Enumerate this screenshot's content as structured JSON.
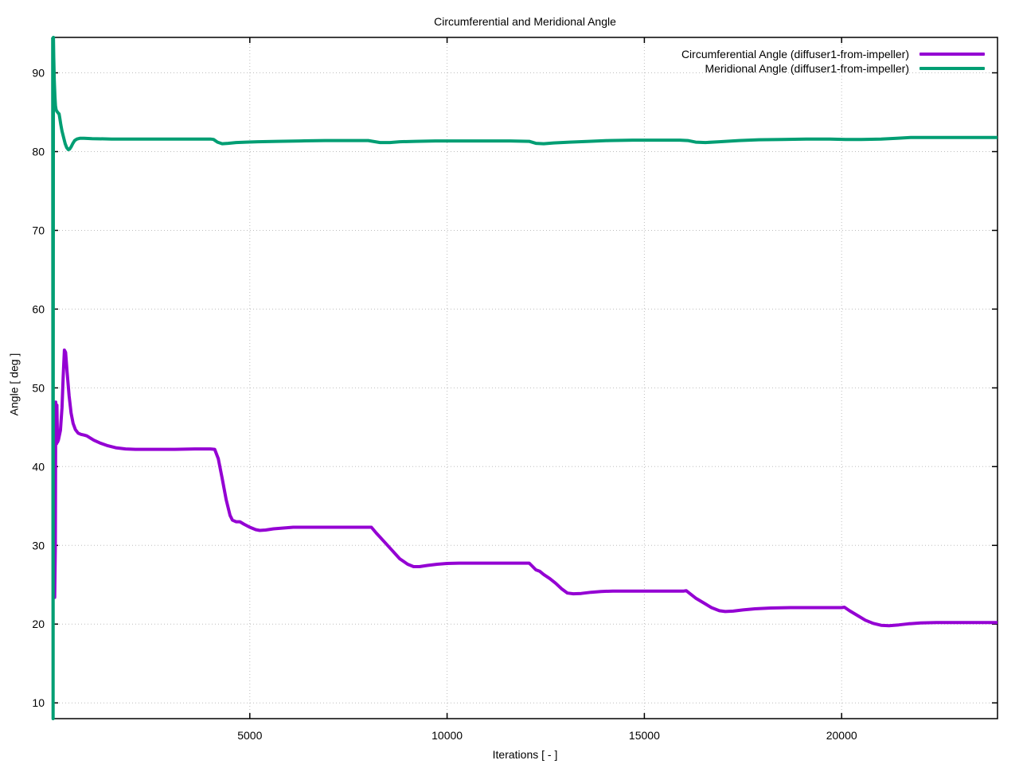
{
  "page": {
    "background": "#ffffff"
  },
  "chart_data": {
    "type": "line",
    "title": "Circumferential and Meridional Angle",
    "xlabel": "Iterations [ - ]",
    "ylabel": "Angle [ deg ]",
    "xlim": [
      0,
      23950
    ],
    "ylim": [
      8,
      94.5
    ],
    "xticks": [
      5000,
      10000,
      15000,
      20000
    ],
    "yticks": [
      10,
      20,
      30,
      40,
      50,
      60,
      70,
      80,
      90
    ],
    "grid": "dotted",
    "legend_position": "top-right",
    "axis_color": "#000000",
    "grid_color": "#bdbdbd",
    "series": [
      {
        "name": "Circumferential Angle (diffuser1-from-impeller)",
        "color": "#9400d3",
        "points": [
          [
            40,
            25
          ],
          [
            55,
            23.4
          ],
          [
            70,
            30
          ],
          [
            80,
            48.2
          ],
          [
            90,
            46
          ],
          [
            100,
            42.9
          ],
          [
            110,
            47.8
          ],
          [
            125,
            43.1
          ],
          [
            150,
            43.4
          ],
          [
            200,
            44.6
          ],
          [
            240,
            47.5
          ],
          [
            270,
            51.5
          ],
          [
            300,
            54.8
          ],
          [
            330,
            54.5
          ],
          [
            370,
            52
          ],
          [
            420,
            49
          ],
          [
            470,
            46.8
          ],
          [
            520,
            45.5
          ],
          [
            580,
            44.7
          ],
          [
            650,
            44.25
          ],
          [
            720,
            44.1
          ],
          [
            800,
            44.0
          ],
          [
            870,
            43.9
          ],
          [
            950,
            43.65
          ],
          [
            1050,
            43.35
          ],
          [
            1200,
            43.0
          ],
          [
            1400,
            42.65
          ],
          [
            1600,
            42.4
          ],
          [
            1850,
            42.25
          ],
          [
            2100,
            42.2
          ],
          [
            2600,
            42.2
          ],
          [
            3100,
            42.2
          ],
          [
            3600,
            42.25
          ],
          [
            4000,
            42.25
          ],
          [
            4110,
            42.2
          ],
          [
            4200,
            41
          ],
          [
            4300,
            38.5
          ],
          [
            4400,
            35.8
          ],
          [
            4500,
            33.8
          ],
          [
            4560,
            33.2
          ],
          [
            4650,
            33.0
          ],
          [
            4750,
            33.0
          ],
          [
            4850,
            32.7
          ],
          [
            5000,
            32.3
          ],
          [
            5150,
            32.0
          ],
          [
            5250,
            31.9
          ],
          [
            5400,
            31.95
          ],
          [
            5600,
            32.1
          ],
          [
            5850,
            32.2
          ],
          [
            6100,
            32.3
          ],
          [
            6500,
            32.3
          ],
          [
            7000,
            32.3
          ],
          [
            7500,
            32.3
          ],
          [
            8080,
            32.3
          ],
          [
            8200,
            31.6
          ],
          [
            8400,
            30.5
          ],
          [
            8600,
            29.4
          ],
          [
            8800,
            28.3
          ],
          [
            9000,
            27.6
          ],
          [
            9150,
            27.3
          ],
          [
            9300,
            27.3
          ],
          [
            9500,
            27.45
          ],
          [
            9750,
            27.6
          ],
          [
            10000,
            27.7
          ],
          [
            10300,
            27.75
          ],
          [
            10800,
            27.75
          ],
          [
            11300,
            27.75
          ],
          [
            11800,
            27.75
          ],
          [
            12080,
            27.75
          ],
          [
            12150,
            27.4
          ],
          [
            12250,
            26.9
          ],
          [
            12350,
            26.7
          ],
          [
            12450,
            26.3
          ],
          [
            12600,
            25.8
          ],
          [
            12750,
            25.2
          ],
          [
            12900,
            24.5
          ],
          [
            13050,
            23.95
          ],
          [
            13200,
            23.85
          ],
          [
            13400,
            23.9
          ],
          [
            13650,
            24.05
          ],
          [
            13900,
            24.15
          ],
          [
            14200,
            24.2
          ],
          [
            14700,
            24.2
          ],
          [
            15200,
            24.2
          ],
          [
            15700,
            24.2
          ],
          [
            16000,
            24.2
          ],
          [
            16060,
            24.25
          ],
          [
            16150,
            23.9
          ],
          [
            16300,
            23.3
          ],
          [
            16500,
            22.7
          ],
          [
            16700,
            22.1
          ],
          [
            16900,
            21.7
          ],
          [
            17050,
            21.6
          ],
          [
            17250,
            21.65
          ],
          [
            17500,
            21.8
          ],
          [
            17800,
            21.95
          ],
          [
            18200,
            22.05
          ],
          [
            18700,
            22.1
          ],
          [
            19200,
            22.1
          ],
          [
            19700,
            22.1
          ],
          [
            20000,
            22.1
          ],
          [
            20070,
            22.15
          ],
          [
            20200,
            21.7
          ],
          [
            20400,
            21.1
          ],
          [
            20600,
            20.5
          ],
          [
            20800,
            20.1
          ],
          [
            21000,
            19.85
          ],
          [
            21200,
            19.8
          ],
          [
            21450,
            19.9
          ],
          [
            21700,
            20.05
          ],
          [
            22000,
            20.15
          ],
          [
            22400,
            20.2
          ],
          [
            22900,
            20.2
          ],
          [
            23400,
            20.2
          ],
          [
            23950,
            20.2
          ]
        ]
      },
      {
        "name": "Meridional Angle (diffuser1-from-impeller)",
        "color": "#009e73",
        "points": [
          [
            5,
            94.5
          ],
          [
            10,
            40
          ],
          [
            14,
            8
          ],
          [
            18,
            60
          ],
          [
            22,
            94.5
          ],
          [
            30,
            92
          ],
          [
            45,
            89
          ],
          [
            60,
            87
          ],
          [
            75,
            85.8
          ],
          [
            90,
            85.3
          ],
          [
            110,
            85.1
          ],
          [
            130,
            85.0
          ],
          [
            150,
            84.85
          ],
          [
            165,
            84.8
          ],
          [
            185,
            84.2
          ],
          [
            210,
            83.4
          ],
          [
            240,
            82.6
          ],
          [
            280,
            81.8
          ],
          [
            320,
            81.0
          ],
          [
            360,
            80.5
          ],
          [
            400,
            80.25
          ],
          [
            430,
            80.3
          ],
          [
            470,
            80.6
          ],
          [
            510,
            81.0
          ],
          [
            560,
            81.4
          ],
          [
            620,
            81.6
          ],
          [
            700,
            81.7
          ],
          [
            800,
            81.7
          ],
          [
            1000,
            81.65
          ],
          [
            1500,
            81.6
          ],
          [
            2000,
            81.6
          ],
          [
            2500,
            81.6
          ],
          [
            3000,
            81.6
          ],
          [
            3500,
            81.6
          ],
          [
            4000,
            81.6
          ],
          [
            4080,
            81.55
          ],
          [
            4180,
            81.2
          ],
          [
            4300,
            81.0
          ],
          [
            4450,
            81.05
          ],
          [
            4650,
            81.15
          ],
          [
            4900,
            81.2
          ],
          [
            5200,
            81.25
          ],
          [
            5700,
            81.3
          ],
          [
            6300,
            81.35
          ],
          [
            6900,
            81.4
          ],
          [
            7500,
            81.4
          ],
          [
            8000,
            81.4
          ],
          [
            8120,
            81.3
          ],
          [
            8300,
            81.15
          ],
          [
            8550,
            81.15
          ],
          [
            8800,
            81.25
          ],
          [
            9200,
            81.3
          ],
          [
            9700,
            81.35
          ],
          [
            10200,
            81.35
          ],
          [
            10900,
            81.35
          ],
          [
            11600,
            81.35
          ],
          [
            12080,
            81.3
          ],
          [
            12250,
            81.05
          ],
          [
            12450,
            81.0
          ],
          [
            12700,
            81.1
          ],
          [
            13100,
            81.2
          ],
          [
            13600,
            81.3
          ],
          [
            14100,
            81.4
          ],
          [
            14700,
            81.45
          ],
          [
            15300,
            81.45
          ],
          [
            15900,
            81.45
          ],
          [
            16100,
            81.4
          ],
          [
            16300,
            81.2
          ],
          [
            16550,
            81.15
          ],
          [
            16900,
            81.25
          ],
          [
            17400,
            81.4
          ],
          [
            17900,
            81.5
          ],
          [
            18500,
            81.55
          ],
          [
            19100,
            81.6
          ],
          [
            19700,
            81.6
          ],
          [
            20100,
            81.55
          ],
          [
            20500,
            81.55
          ],
          [
            21000,
            81.6
          ],
          [
            21400,
            81.7
          ],
          [
            21750,
            81.8
          ],
          [
            22300,
            81.8
          ],
          [
            23000,
            81.8
          ],
          [
            23950,
            81.8
          ]
        ]
      }
    ]
  }
}
